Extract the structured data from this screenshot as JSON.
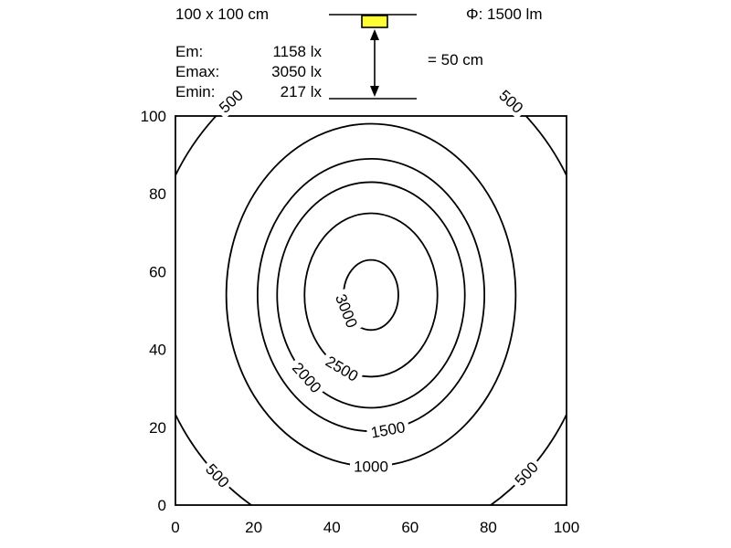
{
  "header": {
    "area": "100 x 100 cm",
    "flux": "Φ: 1500 lm",
    "distance": "= 50 cm",
    "stats": [
      {
        "label": "Em:",
        "value": "1158 lx"
      },
      {
        "label": "Emax:",
        "value": "3050 lx"
      },
      {
        "label": "Emin:",
        "value": "217 lx"
      }
    ]
  },
  "colors": {
    "lamp": "#ffff33",
    "line": "#000000"
  },
  "chart_data": {
    "type": "contour",
    "title": "",
    "xlabel": "",
    "ylabel": "",
    "xlim": [
      0,
      100
    ],
    "ylim": [
      0,
      100
    ],
    "x_ticks": [
      0,
      20,
      40,
      60,
      80,
      100
    ],
    "y_ticks": [
      0,
      20,
      40,
      60,
      80,
      100
    ],
    "unit": "lx",
    "center": [
      50,
      54
    ],
    "levels": [
      {
        "value": 500,
        "rx": 57,
        "ry": 64,
        "labels": [
          "500",
          "500",
          "500",
          "500"
        ]
      },
      {
        "value": 1000,
        "rx": 37,
        "ry": 44,
        "labels": [
          "1000"
        ]
      },
      {
        "value": 1500,
        "rx": 29,
        "ry": 35,
        "labels": [
          "1500"
        ]
      },
      {
        "value": 2000,
        "rx": 24,
        "ry": 29,
        "labels": [
          "2000"
        ]
      },
      {
        "value": 2500,
        "rx": 17,
        "ry": 21,
        "labels": [
          "2500"
        ]
      },
      {
        "value": 3000,
        "rx": 7,
        "ry": 9,
        "labels": [
          "3000"
        ]
      }
    ]
  }
}
